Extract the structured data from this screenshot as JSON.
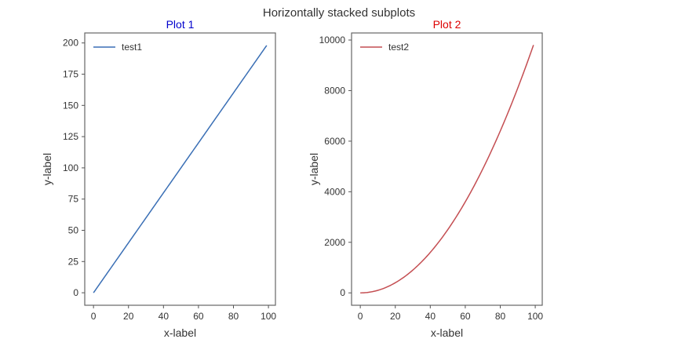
{
  "figure": {
    "suptitle": "Horizontally stacked subplots"
  },
  "chart_data": [
    {
      "type": "line",
      "title": "Plot 1",
      "title_color": "#0000cc",
      "xlabel": "x-label",
      "ylabel": "y-label",
      "xlim": [
        -5,
        104
      ],
      "ylim": [
        -10,
        208
      ],
      "xticks": [
        0,
        20,
        40,
        60,
        80,
        100
      ],
      "yticks": [
        0,
        25,
        50,
        75,
        100,
        125,
        150,
        175,
        200
      ],
      "legend_position": "top-left",
      "grid": false,
      "series": [
        {
          "name": "test1",
          "color": "#3a6fb5",
          "function": "2x",
          "x_range": [
            0,
            99
          ]
        }
      ]
    },
    {
      "type": "line",
      "title": "Plot 2",
      "title_color": "#dd0000",
      "xlabel": "x-label",
      "ylabel": "y-label",
      "xlim": [
        -5,
        104
      ],
      "ylim": [
        -490,
        10280
      ],
      "xticks": [
        0,
        20,
        40,
        60,
        80,
        100
      ],
      "yticks": [
        0,
        2000,
        4000,
        6000,
        8000,
        10000
      ],
      "legend_position": "top-left",
      "grid": false,
      "series": [
        {
          "name": "test2",
          "color": "#c44e52",
          "function": "x^2",
          "x_range": [
            0,
            99
          ]
        }
      ]
    }
  ]
}
